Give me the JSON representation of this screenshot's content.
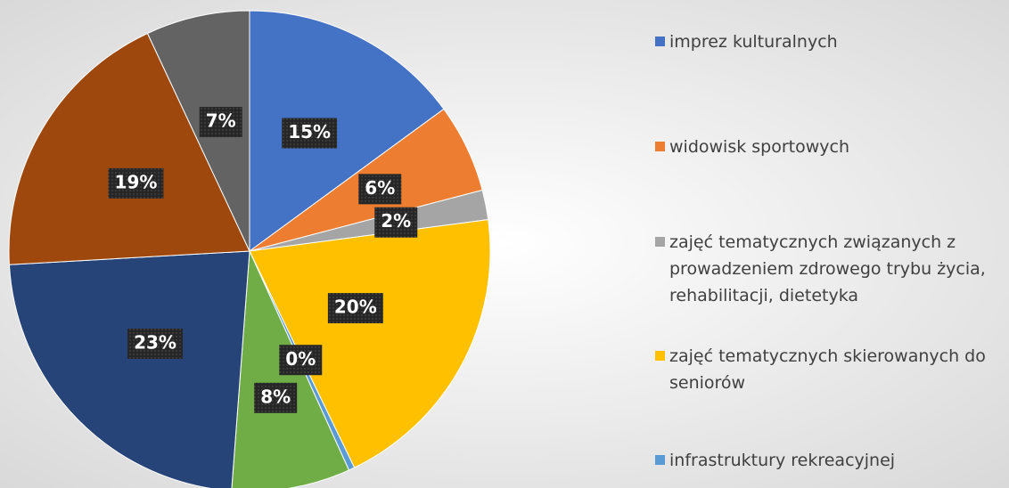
{
  "chart_data": {
    "type": "pie",
    "categories": [
      "imprez kulturalnych",
      "widowisk sportowych",
      "zajęć tematycznych związanych z prowadzeniem zdrowego trybu życia, rehabilitacji, dietetyka",
      "zajęć tematycznych skierowanych do seniorów",
      "infrastruktury rekreacyjnej",
      null,
      null,
      null,
      null
    ],
    "values": [
      15,
      6,
      2,
      20,
      0.4,
      8,
      23,
      19,
      7
    ],
    "value_labels": [
      "15%",
      "6%",
      "2%",
      "20%",
      "0%",
      "8%",
      "23%",
      "19%",
      "7%"
    ],
    "colors": [
      "#4472c4",
      "#ed7d31",
      "#a5a5a5",
      "#ffc000",
      "#5b9bd5",
      "#70ad47",
      "#264478",
      "#9e480e",
      "#636363"
    ]
  }
}
